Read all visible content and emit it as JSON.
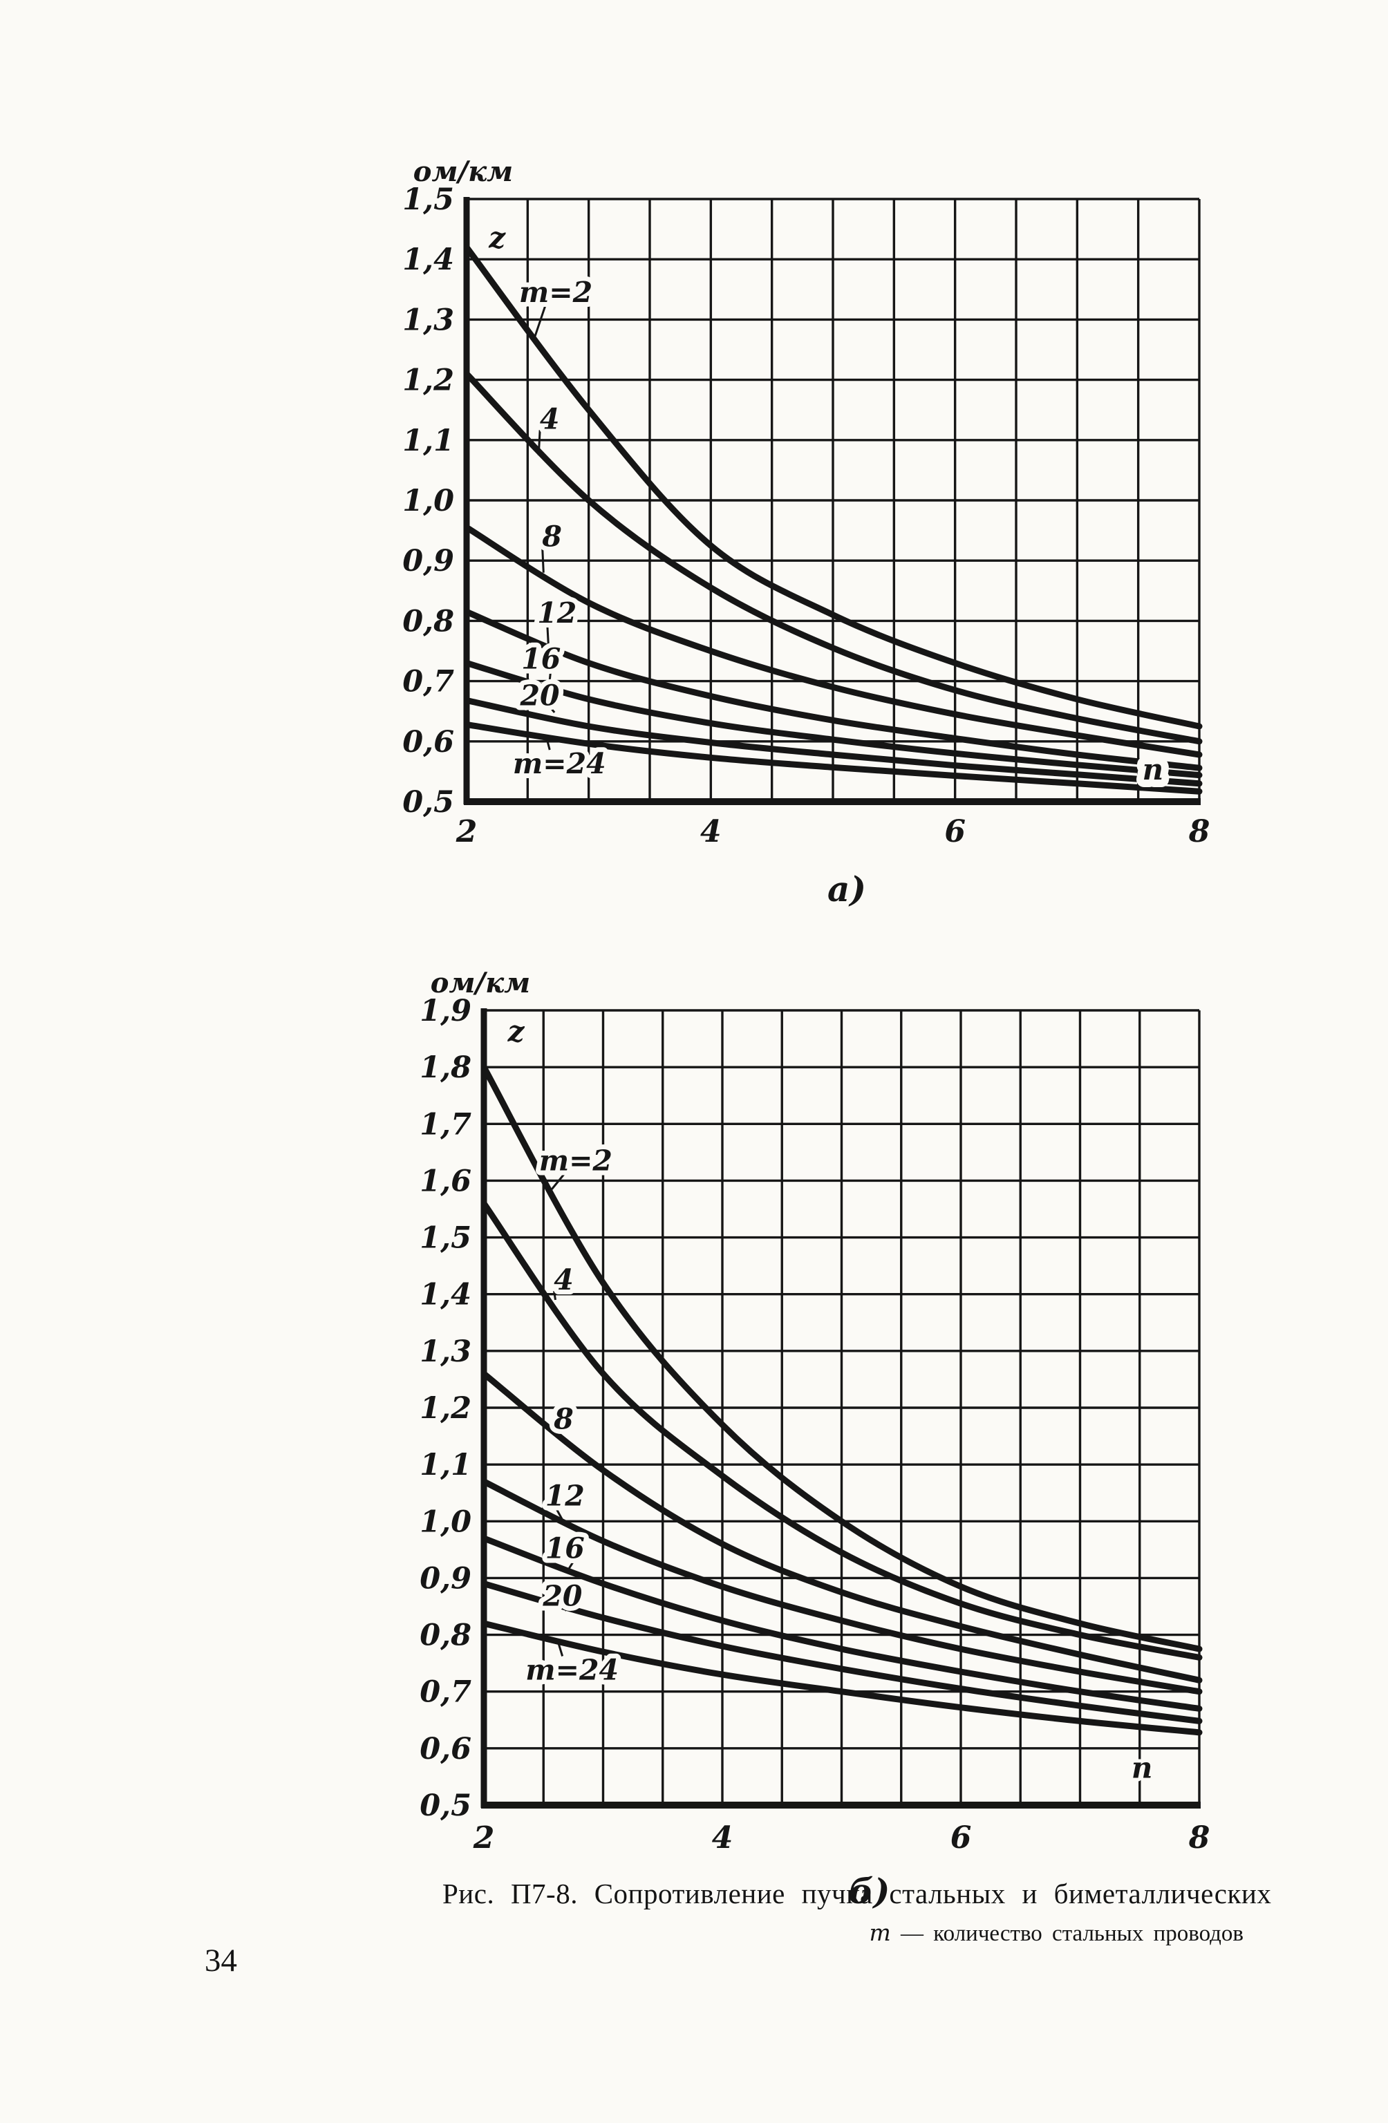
{
  "page": {
    "number": "34",
    "paper_color": "#fbfaf6",
    "ink_color": "#161616"
  },
  "caption": {
    "line1": "Рис. П7-8. Сопротивление пучка стальных и биметаллических",
    "line2_var": "m",
    "line2_rest": "— количество стальных проводов"
  },
  "chart_data": [
    {
      "type": "line",
      "panel_label": "а)",
      "unit_label": "ом/км",
      "xlim": [
        2,
        8
      ],
      "ylim": [
        0.5,
        1.5
      ],
      "x_grid_step": 0.5,
      "y_grid_step": 0.1,
      "x_tick_values": [
        2,
        4,
        6,
        8
      ],
      "x_ticks": [
        "2",
        "4",
        "6",
        "8"
      ],
      "y_ticks": [
        "1,5",
        "1,4",
        "1,3",
        "1,2",
        "1,1",
        "1,0",
        "0,9",
        "0,8",
        "0,7",
        "0,6",
        "0,5"
      ],
      "x": [
        2,
        3,
        4,
        5,
        6,
        7,
        8
      ],
      "series": [
        {
          "name": "m=2",
          "values": [
            1.42,
            1.15,
            0.925,
            0.81,
            0.73,
            0.67,
            0.625
          ],
          "label": {
            "text": "m=2",
            "x": 2.73,
            "y": 1.345,
            "lx": 2.56,
            "ly": 1.272
          }
        },
        {
          "name": "m=4",
          "values": [
            1.21,
            1.0,
            0.855,
            0.755,
            0.685,
            0.638,
            0.6
          ],
          "label": {
            "text": "4",
            "x": 2.68,
            "y": 1.135,
            "lx": 2.59,
            "ly": 1.075
          }
        },
        {
          "name": "m=8",
          "values": [
            0.955,
            0.83,
            0.75,
            0.69,
            0.645,
            0.61,
            0.578
          ],
          "label": {
            "text": "8",
            "x": 2.7,
            "y": 0.94,
            "lx": 2.63,
            "ly": 0.88
          }
        },
        {
          "name": "m=12",
          "values": [
            0.815,
            0.73,
            0.675,
            0.635,
            0.605,
            0.578,
            0.556
          ],
          "label": {
            "text": "12",
            "x": 2.74,
            "y": 0.813,
            "lx": 2.67,
            "ly": 0.76
          }
        },
        {
          "name": "m=16",
          "values": [
            0.73,
            0.67,
            0.63,
            0.603,
            0.58,
            0.561,
            0.544
          ],
          "label": {
            "text": "16",
            "x": 2.61,
            "y": 0.737,
            "lx": 2.68,
            "ly": 0.7
          }
        },
        {
          "name": "m=20",
          "values": [
            0.668,
            0.625,
            0.598,
            0.578,
            0.56,
            0.545,
            0.53
          ],
          "label": {
            "text": "20",
            "x": 2.6,
            "y": 0.676,
            "lx": 2.72,
            "ly": 0.648
          }
        },
        {
          "name": "m=24",
          "values": [
            0.628,
            0.596,
            0.573,
            0.557,
            0.543,
            0.53,
            0.517
          ],
          "label": {
            "text": "m=24",
            "x": 2.76,
            "y": 0.563,
            "lx": 2.66,
            "ly": 0.602
          }
        }
      ],
      "annotations": [
        {
          "text": "z",
          "x": 2.25,
          "y": 1.435,
          "style": "plain"
        },
        {
          "text": "n",
          "x": 7.62,
          "y": 0.553,
          "style": "boxed"
        }
      ]
    },
    {
      "type": "line",
      "panel_label": "б)",
      "unit_label": "ом/км",
      "xlim": [
        2,
        8
      ],
      "ylim": [
        0.5,
        1.9
      ],
      "x_grid_step": 0.5,
      "y_grid_step": 0.1,
      "x_tick_values": [
        2,
        4,
        6,
        8
      ],
      "x_ticks": [
        "2",
        "4",
        "6",
        "8"
      ],
      "y_ticks": [
        "1,9",
        "1,8",
        "1,7",
        "1,6",
        "1,5",
        "1,4",
        "1,3",
        "1,2",
        "1,1",
        "1,0",
        "0,9",
        "0,8",
        "0,7",
        "0,6",
        "0,5"
      ],
      "x": [
        2,
        3,
        4,
        5,
        6,
        7,
        8
      ],
      "series": [
        {
          "name": "m=2",
          "values": [
            1.8,
            1.42,
            1.17,
            1.0,
            0.885,
            0.82,
            0.775
          ],
          "label": {
            "text": "m=2",
            "x": 2.77,
            "y": 1.635,
            "lx": 2.57,
            "ly": 1.585
          }
        },
        {
          "name": "m=4",
          "values": [
            1.56,
            1.26,
            1.08,
            0.945,
            0.855,
            0.8,
            0.76
          ],
          "label": {
            "text": "4",
            "x": 2.67,
            "y": 1.425,
            "lx": 2.6,
            "ly": 1.39
          }
        },
        {
          "name": "m=8",
          "values": [
            1.26,
            1.09,
            0.96,
            0.875,
            0.815,
            0.765,
            0.72
          ],
          "label": {
            "text": "8",
            "x": 2.67,
            "y": 1.18,
            "lx": 2.6,
            "ly": 1.152
          }
        },
        {
          "name": "m=12",
          "values": [
            1.07,
            0.965,
            0.885,
            0.825,
            0.775,
            0.735,
            0.7
          ],
          "label": {
            "text": "12",
            "x": 2.68,
            "y": 1.045,
            "lx": 2.66,
            "ly": 1.002
          }
        },
        {
          "name": "m=16",
          "values": [
            0.97,
            0.89,
            0.825,
            0.775,
            0.735,
            0.7,
            0.67
          ],
          "label": {
            "text": "16",
            "x": 2.68,
            "y": 0.952,
            "lx": 2.7,
            "ly": 0.912
          }
        },
        {
          "name": "m=20",
          "values": [
            0.89,
            0.83,
            0.78,
            0.74,
            0.705,
            0.675,
            0.648
          ],
          "label": {
            "text": "20",
            "x": 2.66,
            "y": 0.868,
            "lx": 2.68,
            "ly": 0.843
          }
        },
        {
          "name": "m=24",
          "values": [
            0.82,
            0.77,
            0.73,
            0.7,
            0.672,
            0.648,
            0.628
          ],
          "label": {
            "text": "m=24",
            "x": 2.74,
            "y": 0.738,
            "lx": 2.62,
            "ly": 0.789
          }
        }
      ],
      "annotations": [
        {
          "text": "z",
          "x": 2.27,
          "y": 1.862,
          "style": "plain"
        },
        {
          "text": "n",
          "x": 7.52,
          "y": 0.565,
          "style": "plain"
        }
      ]
    }
  ]
}
